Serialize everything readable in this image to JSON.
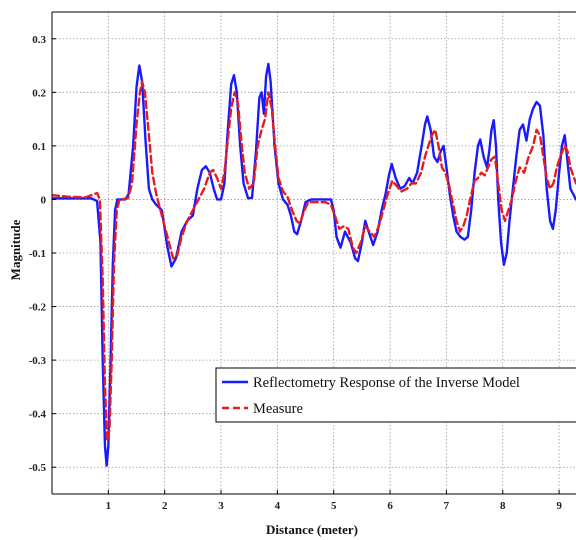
{
  "chart_data": {
    "type": "line",
    "title": "",
    "xlabel": "Distance (meter)",
    "ylabel": "Magnitude",
    "xlim": [
      0,
      9.3
    ],
    "ylim": [
      -0.55,
      0.35
    ],
    "xticks": [
      1,
      2,
      3,
      4,
      5,
      6,
      7,
      8,
      9
    ],
    "yticks": [
      0.3,
      0.2,
      0.1,
      0,
      -0.1,
      -0.2,
      -0.3,
      -0.4,
      -0.5
    ],
    "grid": true,
    "legend_position": "lower-right",
    "series": [
      {
        "name": "Reflectometry Response of the Inverse Model",
        "color": "#1a1aff",
        "style": "solid",
        "points": [
          [
            0,
            0.002
          ],
          [
            0.4,
            0.002
          ],
          [
            0.7,
            0.002
          ],
          [
            0.8,
            -0.003
          ],
          [
            0.86,
            -0.08
          ],
          [
            0.9,
            -0.3
          ],
          [
            0.94,
            -0.46
          ],
          [
            0.97,
            -0.497
          ],
          [
            1.0,
            -0.46
          ],
          [
            1.04,
            -0.3
          ],
          [
            1.08,
            -0.12
          ],
          [
            1.12,
            -0.02
          ],
          [
            1.16,
            0.0
          ],
          [
            1.3,
            0.0
          ],
          [
            1.36,
            0.01
          ],
          [
            1.44,
            0.1
          ],
          [
            1.5,
            0.21
          ],
          [
            1.55,
            0.25
          ],
          [
            1.6,
            0.22
          ],
          [
            1.66,
            0.11
          ],
          [
            1.72,
            0.02
          ],
          [
            1.78,
            0.0
          ],
          [
            1.85,
            -0.01
          ],
          [
            1.95,
            -0.02
          ],
          [
            2.05,
            -0.09
          ],
          [
            2.12,
            -0.125
          ],
          [
            2.2,
            -0.11
          ],
          [
            2.3,
            -0.06
          ],
          [
            2.4,
            -0.04
          ],
          [
            2.5,
            -0.03
          ],
          [
            2.58,
            0.02
          ],
          [
            2.66,
            0.055
          ],
          [
            2.73,
            0.062
          ],
          [
            2.8,
            0.05
          ],
          [
            2.87,
            0.02
          ],
          [
            2.93,
            0.0
          ],
          [
            3.0,
            0.0
          ],
          [
            3.06,
            0.03
          ],
          [
            3.12,
            0.13
          ],
          [
            3.18,
            0.215
          ],
          [
            3.23,
            0.232
          ],
          [
            3.28,
            0.2
          ],
          [
            3.34,
            0.1
          ],
          [
            3.4,
            0.03
          ],
          [
            3.48,
            0.002
          ],
          [
            3.55,
            0.003
          ],
          [
            3.62,
            0.09
          ],
          [
            3.68,
            0.19
          ],
          [
            3.72,
            0.2
          ],
          [
            3.76,
            0.16
          ],
          [
            3.8,
            0.23
          ],
          [
            3.84,
            0.253
          ],
          [
            3.88,
            0.22
          ],
          [
            3.95,
            0.1
          ],
          [
            4.02,
            0.03
          ],
          [
            4.1,
            0.0
          ],
          [
            4.18,
            -0.01
          ],
          [
            4.24,
            -0.03
          ],
          [
            4.3,
            -0.06
          ],
          [
            4.35,
            -0.065
          ],
          [
            4.42,
            -0.04
          ],
          [
            4.5,
            -0.005
          ],
          [
            4.6,
            0.0
          ],
          [
            4.75,
            0.0
          ],
          [
            4.85,
            0.0
          ],
          [
            4.95,
            0.0
          ],
          [
            5.0,
            -0.02
          ],
          [
            5.05,
            -0.07
          ],
          [
            5.12,
            -0.09
          ],
          [
            5.2,
            -0.06
          ],
          [
            5.3,
            -0.08
          ],
          [
            5.38,
            -0.11
          ],
          [
            5.43,
            -0.115
          ],
          [
            5.5,
            -0.08
          ],
          [
            5.56,
            -0.04
          ],
          [
            5.62,
            -0.06
          ],
          [
            5.7,
            -0.085
          ],
          [
            5.78,
            -0.06
          ],
          [
            5.85,
            -0.02
          ],
          [
            5.92,
            0.01
          ],
          [
            5.98,
            0.045
          ],
          [
            6.03,
            0.066
          ],
          [
            6.1,
            0.04
          ],
          [
            6.18,
            0.02
          ],
          [
            6.26,
            0.025
          ],
          [
            6.34,
            0.04
          ],
          [
            6.4,
            0.03
          ],
          [
            6.48,
            0.05
          ],
          [
            6.56,
            0.1
          ],
          [
            6.62,
            0.14
          ],
          [
            6.66,
            0.155
          ],
          [
            6.72,
            0.13
          ],
          [
            6.78,
            0.08
          ],
          [
            6.84,
            0.07
          ],
          [
            6.9,
            0.09
          ],
          [
            6.95,
            0.1
          ],
          [
            7.0,
            0.06
          ],
          [
            7.06,
            0.01
          ],
          [
            7.12,
            -0.03
          ],
          [
            7.18,
            -0.06
          ],
          [
            7.25,
            -0.07
          ],
          [
            7.32,
            -0.075
          ],
          [
            7.38,
            -0.07
          ],
          [
            7.44,
            -0.02
          ],
          [
            7.5,
            0.05
          ],
          [
            7.56,
            0.1
          ],
          [
            7.6,
            0.112
          ],
          [
            7.66,
            0.08
          ],
          [
            7.72,
            0.06
          ],
          [
            7.76,
            0.09
          ],
          [
            7.8,
            0.13
          ],
          [
            7.84,
            0.148
          ],
          [
            7.88,
            0.1
          ],
          [
            7.92,
            0.0
          ],
          [
            7.97,
            -0.08
          ],
          [
            8.02,
            -0.122
          ],
          [
            8.07,
            -0.1
          ],
          [
            8.12,
            -0.04
          ],
          [
            8.18,
            0.02
          ],
          [
            8.24,
            0.08
          ],
          [
            8.3,
            0.13
          ],
          [
            8.36,
            0.14
          ],
          [
            8.42,
            0.11
          ],
          [
            8.48,
            0.15
          ],
          [
            8.54,
            0.17
          ],
          [
            8.6,
            0.182
          ],
          [
            8.66,
            0.175
          ],
          [
            8.72,
            0.12
          ],
          [
            8.78,
            0.02
          ],
          [
            8.84,
            -0.04
          ],
          [
            8.89,
            -0.055
          ],
          [
            8.94,
            -0.02
          ],
          [
            9.0,
            0.05
          ],
          [
            9.05,
            0.1
          ],
          [
            9.1,
            0.12
          ],
          [
            9.15,
            0.07
          ],
          [
            9.2,
            0.02
          ],
          [
            9.3,
            0.0
          ]
        ]
      },
      {
        "name": "Measure",
        "color": "#e81c1c",
        "style": "dashed",
        "points": [
          [
            0,
            0.008
          ],
          [
            0.3,
            0.005
          ],
          [
            0.6,
            0.004
          ],
          [
            0.8,
            0.012
          ],
          [
            0.85,
            0.0
          ],
          [
            0.9,
            -0.15
          ],
          [
            0.94,
            -0.35
          ],
          [
            0.98,
            -0.45
          ],
          [
            1.02,
            -0.43
          ],
          [
            1.06,
            -0.3
          ],
          [
            1.1,
            -0.12
          ],
          [
            1.15,
            -0.02
          ],
          [
            1.2,
            0.0
          ],
          [
            1.35,
            0.002
          ],
          [
            1.42,
            0.03
          ],
          [
            1.5,
            0.14
          ],
          [
            1.56,
            0.2
          ],
          [
            1.6,
            0.22
          ],
          [
            1.65,
            0.2
          ],
          [
            1.72,
            0.12
          ],
          [
            1.78,
            0.05
          ],
          [
            1.85,
            0.01
          ],
          [
            1.95,
            -0.03
          ],
          [
            2.05,
            -0.07
          ],
          [
            2.15,
            -0.11
          ],
          [
            2.22,
            -0.105
          ],
          [
            2.3,
            -0.07
          ],
          [
            2.4,
            -0.04
          ],
          [
            2.5,
            -0.02
          ],
          [
            2.6,
            0.0
          ],
          [
            2.7,
            0.02
          ],
          [
            2.8,
            0.05
          ],
          [
            2.86,
            0.055
          ],
          [
            2.93,
            0.04
          ],
          [
            3.0,
            0.02
          ],
          [
            3.06,
            0.05
          ],
          [
            3.12,
            0.11
          ],
          [
            3.18,
            0.17
          ],
          [
            3.24,
            0.2
          ],
          [
            3.3,
            0.18
          ],
          [
            3.36,
            0.11
          ],
          [
            3.42,
            0.05
          ],
          [
            3.5,
            0.02
          ],
          [
            3.58,
            0.03
          ],
          [
            3.65,
            0.1
          ],
          [
            3.72,
            0.13
          ],
          [
            3.78,
            0.15
          ],
          [
            3.84,
            0.2
          ],
          [
            3.9,
            0.17
          ],
          [
            3.96,
            0.1
          ],
          [
            4.02,
            0.04
          ],
          [
            4.1,
            0.015
          ],
          [
            4.18,
            0.005
          ],
          [
            4.26,
            -0.02
          ],
          [
            4.34,
            -0.04
          ],
          [
            4.4,
            -0.045
          ],
          [
            4.48,
            -0.02
          ],
          [
            4.55,
            -0.005
          ],
          [
            4.7,
            -0.005
          ],
          [
            4.85,
            -0.005
          ],
          [
            4.95,
            -0.01
          ],
          [
            5.02,
            -0.03
          ],
          [
            5.1,
            -0.055
          ],
          [
            5.18,
            -0.05
          ],
          [
            5.26,
            -0.055
          ],
          [
            5.34,
            -0.09
          ],
          [
            5.4,
            -0.1
          ],
          [
            5.48,
            -0.08
          ],
          [
            5.56,
            -0.05
          ],
          [
            5.64,
            -0.06
          ],
          [
            5.72,
            -0.07
          ],
          [
            5.8,
            -0.05
          ],
          [
            5.88,
            -0.02
          ],
          [
            5.96,
            0.01
          ],
          [
            6.04,
            0.035
          ],
          [
            6.12,
            0.025
          ],
          [
            6.2,
            0.015
          ],
          [
            6.3,
            0.02
          ],
          [
            6.38,
            0.03
          ],
          [
            6.46,
            0.03
          ],
          [
            6.55,
            0.05
          ],
          [
            6.62,
            0.08
          ],
          [
            6.68,
            0.1
          ],
          [
            6.74,
            0.12
          ],
          [
            6.8,
            0.13
          ],
          [
            6.86,
            0.1
          ],
          [
            6.92,
            0.06
          ],
          [
            6.98,
            0.05
          ],
          [
            7.04,
            0.03
          ],
          [
            7.1,
            0.0
          ],
          [
            7.18,
            -0.04
          ],
          [
            7.24,
            -0.06
          ],
          [
            7.3,
            -0.05
          ],
          [
            7.36,
            -0.03
          ],
          [
            7.42,
            0.0
          ],
          [
            7.5,
            0.035
          ],
          [
            7.56,
            0.04
          ],
          [
            7.62,
            0.05
          ],
          [
            7.68,
            0.045
          ],
          [
            7.74,
            0.06
          ],
          [
            7.8,
            0.075
          ],
          [
            7.86,
            0.08
          ],
          [
            7.92,
            0.03
          ],
          [
            7.98,
            -0.02
          ],
          [
            8.04,
            -0.04
          ],
          [
            8.1,
            -0.02
          ],
          [
            8.16,
            0.0
          ],
          [
            8.22,
            0.03
          ],
          [
            8.3,
            0.06
          ],
          [
            8.38,
            0.05
          ],
          [
            8.46,
            0.08
          ],
          [
            8.54,
            0.1
          ],
          [
            8.6,
            0.13
          ],
          [
            8.66,
            0.12
          ],
          [
            8.72,
            0.08
          ],
          [
            8.78,
            0.04
          ],
          [
            8.84,
            0.02
          ],
          [
            8.9,
            0.03
          ],
          [
            8.96,
            0.06
          ],
          [
            9.02,
            0.08
          ],
          [
            9.1,
            0.1
          ],
          [
            9.15,
            0.09
          ],
          [
            9.2,
            0.06
          ],
          [
            9.3,
            0.03
          ]
        ]
      }
    ]
  }
}
